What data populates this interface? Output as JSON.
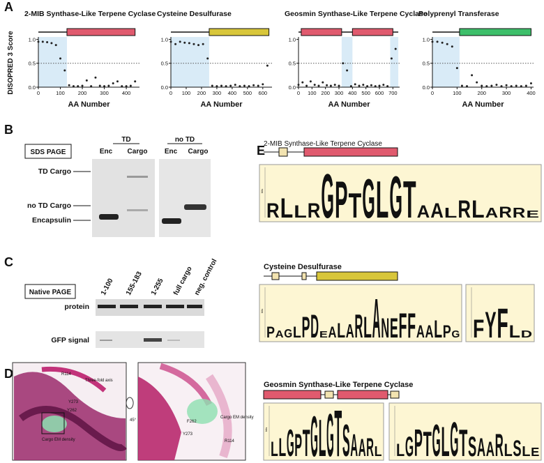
{
  "panels": {
    "A": {
      "label": "A",
      "y_label": "DISOPRED 3 Score",
      "plots": [
        {
          "title": "2-MIB Synthase-Like Terpene Cyclase",
          "x_label": "AA Number",
          "xlim": [
            0,
            460
          ],
          "xticks": [
            0,
            100,
            200,
            300,
            400
          ],
          "ylim": [
            0,
            1.05
          ],
          "yticks": [
            {
              "value": 0,
              "label": "0.0"
            },
            {
              "value": 0.5,
              "label": "0.5"
            },
            {
              "value": 1,
              "label": "1.0"
            }
          ],
          "threshold": 0.5,
          "length": 440,
          "domains": [
            {
              "range": [
                130,
                440
              ],
              "color": "#e05a6e"
            }
          ],
          "disordered": [
            [
              0,
              130
            ]
          ],
          "x": [
            0,
            20,
            40,
            60,
            80,
            100,
            120,
            140,
            160,
            180,
            200,
            220,
            240,
            260,
            280,
            300,
            320,
            340,
            360,
            380,
            400,
            420,
            440
          ],
          "values": [
            0.95,
            0.95,
            0.94,
            0.92,
            0.88,
            0.6,
            0.35,
            0.04,
            0.02,
            0.02,
            0.03,
            0.14,
            0.02,
            0.2,
            0.03,
            0.02,
            0.03,
            0.08,
            0.12,
            0.02,
            0.02,
            0.03,
            0.12
          ]
        },
        {
          "title": "Cysteine Desulfurase",
          "x_label": "AA Number",
          "xlim": [
            0,
            660
          ],
          "xticks": [
            0,
            100,
            200,
            300,
            400,
            500,
            600
          ],
          "ylim": [
            0,
            1.05
          ],
          "yticks": [
            {
              "value": 0,
              "label": "0.0"
            },
            {
              "value": 0.5,
              "label": "0.5"
            },
            {
              "value": 1,
              "label": "1.0"
            }
          ],
          "threshold": 0.5,
          "length": 640,
          "domains": [
            {
              "range": [
                250,
                640
              ],
              "color": "#d8c63a"
            }
          ],
          "disordered": [
            [
              0,
              250
            ]
          ],
          "x": [
            0,
            30,
            60,
            90,
            120,
            150,
            180,
            210,
            240,
            270,
            300,
            330,
            360,
            390,
            420,
            450,
            480,
            510,
            540,
            570,
            600,
            630
          ],
          "values": [
            0.95,
            0.9,
            0.95,
            0.93,
            0.92,
            0.9,
            0.88,
            0.9,
            0.6,
            0.03,
            0.02,
            0.03,
            0.02,
            0.03,
            0.05,
            0.02,
            0.03,
            0.02,
            0.04,
            0.03,
            0.06,
            0.45
          ]
        },
        {
          "title": "Geosmin Synthase-Like Terpene Cyclase",
          "x_label": "AA Number",
          "xlim": [
            0,
            750
          ],
          "xticks": [
            0,
            100,
            200,
            300,
            400,
            500,
            600,
            700
          ],
          "ylim": [
            0,
            1.05
          ],
          "yticks": [
            {
              "value": 0,
              "label": "0.0"
            },
            {
              "value": 0.5,
              "label": "0.5"
            },
            {
              "value": 1,
              "label": "1.0"
            }
          ],
          "threshold": 0.5,
          "length": 740,
          "domains": [
            {
              "range": [
                20,
                320
              ],
              "color": "#e05a6e"
            },
            {
              "range": [
                400,
                700
              ],
              "color": "#e05a6e"
            }
          ],
          "disordered": [
            [
              320,
              400
            ],
            [
              680,
              740
            ]
          ],
          "x": [
            0,
            30,
            60,
            90,
            120,
            150,
            180,
            210,
            240,
            270,
            300,
            330,
            360,
            390,
            420,
            450,
            480,
            510,
            540,
            570,
            600,
            630,
            660,
            690,
            720
          ],
          "values": [
            0.05,
            0.1,
            0.03,
            0.12,
            0.05,
            0.03,
            0.1,
            0.04,
            0.03,
            0.05,
            0.03,
            0.5,
            0.35,
            0.02,
            0.06,
            0.03,
            0.05,
            0.02,
            0.04,
            0.02,
            0.03,
            0.05,
            0.02,
            0.6,
            0.8
          ]
        },
        {
          "title": "Polyprenyl Transferase",
          "x_label": "AA Number",
          "xlim": [
            0,
            410
          ],
          "xticks": [
            0,
            100,
            200,
            300,
            400
          ],
          "ylim": [
            0,
            1.05
          ],
          "yticks": [
            {
              "value": 0,
              "label": "0.0"
            },
            {
              "value": 0.5,
              "label": "0.5"
            },
            {
              "value": 1,
              "label": "1.0"
            }
          ],
          "threshold": 0.5,
          "length": 400,
          "domains": [
            {
              "range": [
                110,
                400
              ],
              "color": "#3dbf6a"
            }
          ],
          "disordered": [
            [
              0,
              110
            ]
          ],
          "x": [
            0,
            20,
            40,
            60,
            80,
            100,
            120,
            140,
            160,
            180,
            200,
            220,
            240,
            260,
            280,
            300,
            320,
            340,
            360,
            380,
            400
          ],
          "values": [
            0.95,
            0.95,
            0.93,
            0.9,
            0.85,
            0.4,
            0.03,
            0.02,
            0.25,
            0.1,
            0.03,
            0.02,
            0.03,
            0.05,
            0.02,
            0.04,
            0.02,
            0.03,
            0.02,
            0.03,
            0.08
          ]
        }
      ]
    },
    "B": {
      "label": "B",
      "box": "SDS PAGE",
      "groups": [
        "TD",
        "no TD"
      ],
      "lanes": [
        "Enc",
        "Cargo",
        "Enc",
        "Cargo"
      ],
      "rows": [
        "TD Cargo",
        "no TD Cargo",
        "Encapsulin"
      ]
    },
    "C": {
      "label": "C",
      "box": "Native PAGE",
      "lanes": [
        "1-100",
        "155-183",
        "1-255",
        "full cargo",
        "neg. control"
      ],
      "rows": [
        "protein",
        "GFP signal"
      ]
    },
    "D": {
      "label": "D",
      "left": [
        "R114",
        "Three-fold axis",
        "Y273",
        "Y262",
        "Cargo EM density"
      ],
      "rotation": "45°",
      "right": [
        "Cargo EM density",
        "F262",
        "Y273",
        "R114"
      ]
    },
    "E": {
      "label": "E",
      "y_label": "bits",
      "ylim": [
        0,
        4
      ],
      "letter_colors": {
        "A": "#111111",
        "L": "#2a9d3a",
        "R": "#d62828",
        "G": "#f0a000",
        "P": "#f0a000",
        "T": "#f0a000",
        "S": "#f0a000",
        "E": "#d62828",
        "D": "#111111",
        "N": "#111111",
        "F": "#3a8fc0",
        "Y": "#3a8fc0"
      },
      "groups": [
        {
          "title": "2-MIB Synthase-Like Terpene Cyclase",
          "logos": [
            {
              "letters": [
                "R",
                "L",
                "L",
                "R",
                "G",
                "P",
                "T",
                "G",
                "L",
                "G",
                "T",
                "A",
                "A",
                "L",
                "R",
                "L",
                "A",
                "R",
                "R",
                "E"
              ],
              "heights": [
                1.2,
                1.6,
                1,
                1.2,
                3.6,
                3,
                2,
                3.2,
                3,
                3.4,
                3,
                1,
                1.2,
                0.8,
                1.4,
                1.4,
                0.8,
                0.9,
                0.8,
                0.6
              ]
            }
          ]
        },
        {
          "title": "Cysteine Desulfurase",
          "logos": [
            {
              "letters": [
                "P",
                "A",
                "G",
                "L",
                "P",
                "D",
                "E",
                "A",
                "L",
                "A",
                "R",
                "L",
                "A",
                "N",
                "E",
                "F",
                "F",
                "A",
                "A",
                "L",
                "P",
                "G"
              ],
              "heights": [
                0.9,
                0.6,
                0.7,
                0.9,
                1.7,
                1.9,
                0.5,
                0.9,
                1.2,
                1.1,
                1.9,
                1.7,
                3.2,
                1.6,
                1.6,
                2,
                2,
                1,
                1,
                1.4,
                1,
                0.6
              ]
            },
            {
              "letters": [
                "F",
                "Y",
                "F",
                "L",
                "D"
              ],
              "heights": [
                1.5,
                2.1,
                2.4,
                1,
                0.6
              ]
            }
          ]
        },
        {
          "title": "Geosmin Synthase-Like Terpene Cyclase",
          "logos": [
            {
              "letters": [
                "L",
                "L",
                "G",
                "P",
                "T",
                "G",
                "L",
                "G",
                "T",
                "S",
                "A",
                "A",
                "R",
                "L"
              ],
              "heights": [
                1.2,
                1.5,
                2.2,
                1.8,
                2.2,
                3.3,
                3,
                3.5,
                3.8,
                2.6,
                1.8,
                1.4,
                1.5,
                0.8
              ]
            },
            {
              "letters": [
                "L",
                "G",
                "P",
                "T",
                "G",
                "L",
                "G",
                "T",
                "S",
                "A",
                "A",
                "R",
                "L",
                "S",
                "L",
                "E"
              ],
              "heights": [
                1,
                1.6,
                2.2,
                2,
                2.6,
                2.4,
                2.8,
                2.2,
                1.6,
                1.5,
                1.2,
                1.8,
                1,
                1.3,
                0.8,
                0.7
              ]
            }
          ]
        }
      ]
    }
  }
}
